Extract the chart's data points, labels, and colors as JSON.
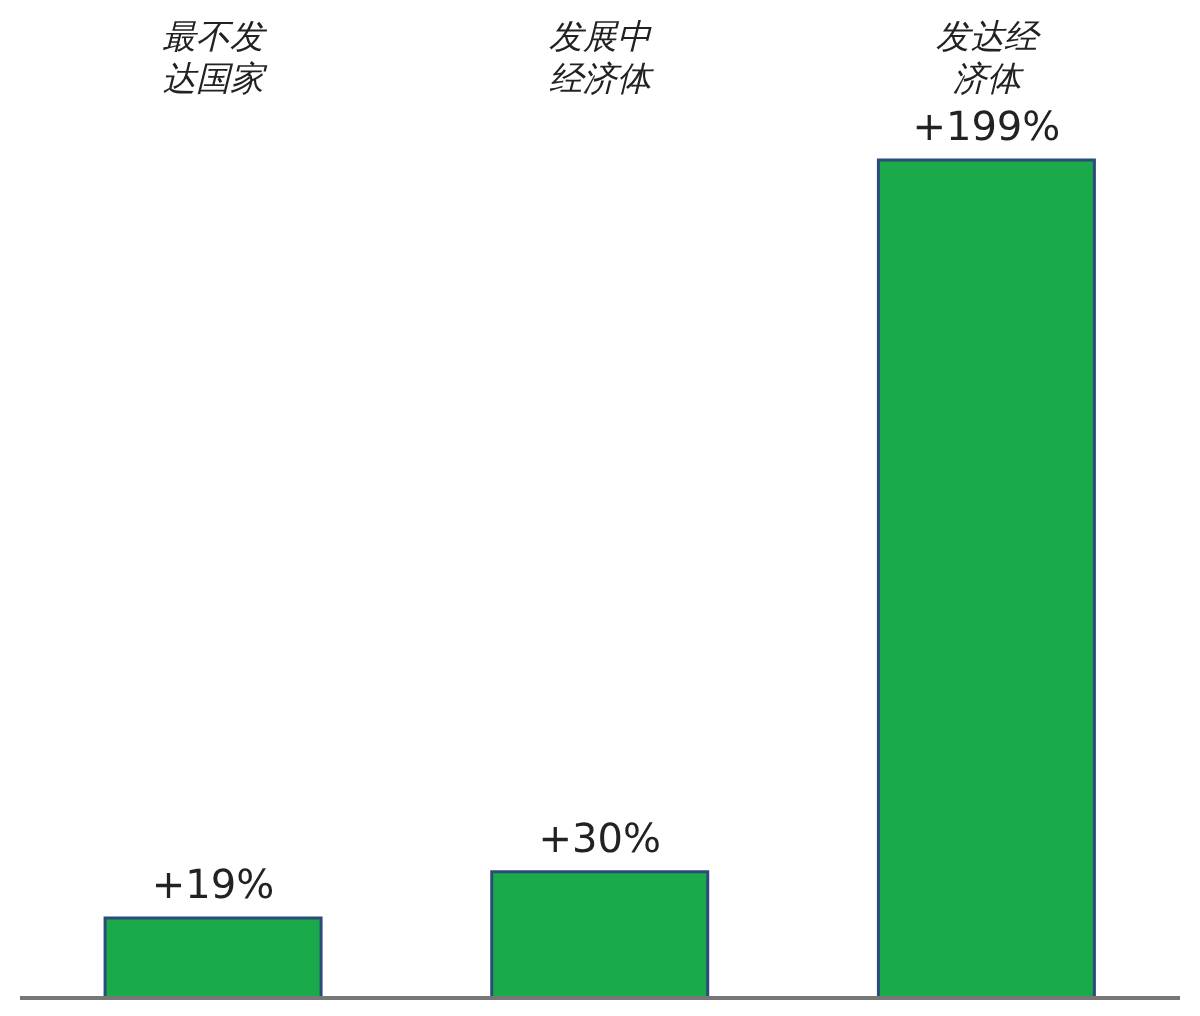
{
  "chart_data": {
    "type": "bar",
    "categories": [
      "最不发达国家",
      "发展中经济体",
      "发达经济体"
    ],
    "values": [
      19,
      30,
      199
    ],
    "value_labels": [
      "+19%",
      "+30%",
      "+199%"
    ],
    "color": "#1aaa4a"
  }
}
